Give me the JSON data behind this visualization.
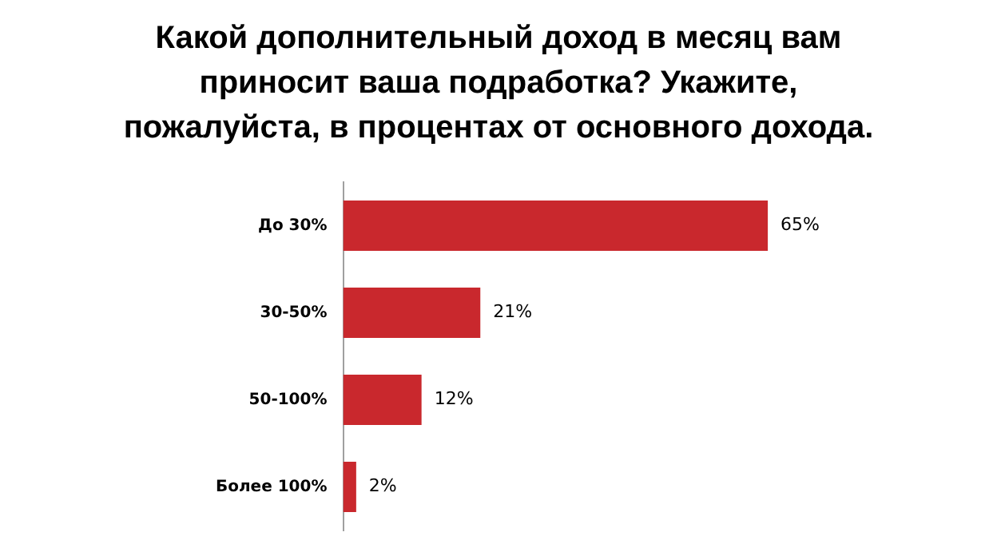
{
  "chart_data": {
    "type": "bar",
    "orientation": "horizontal",
    "title": "Какой дополнительный доход в месяц вам приносит ваша подработка? Укажите, пожалуйста, в процентах от основного дохода.",
    "categories": [
      "До 30%",
      "30-50%",
      "50-100%",
      "Более 100%"
    ],
    "values": [
      65,
      21,
      12,
      2
    ],
    "value_labels": [
      "65%",
      "21%",
      "12%",
      "2%"
    ],
    "color": "#c9282d",
    "grid": false,
    "legend": false
  }
}
